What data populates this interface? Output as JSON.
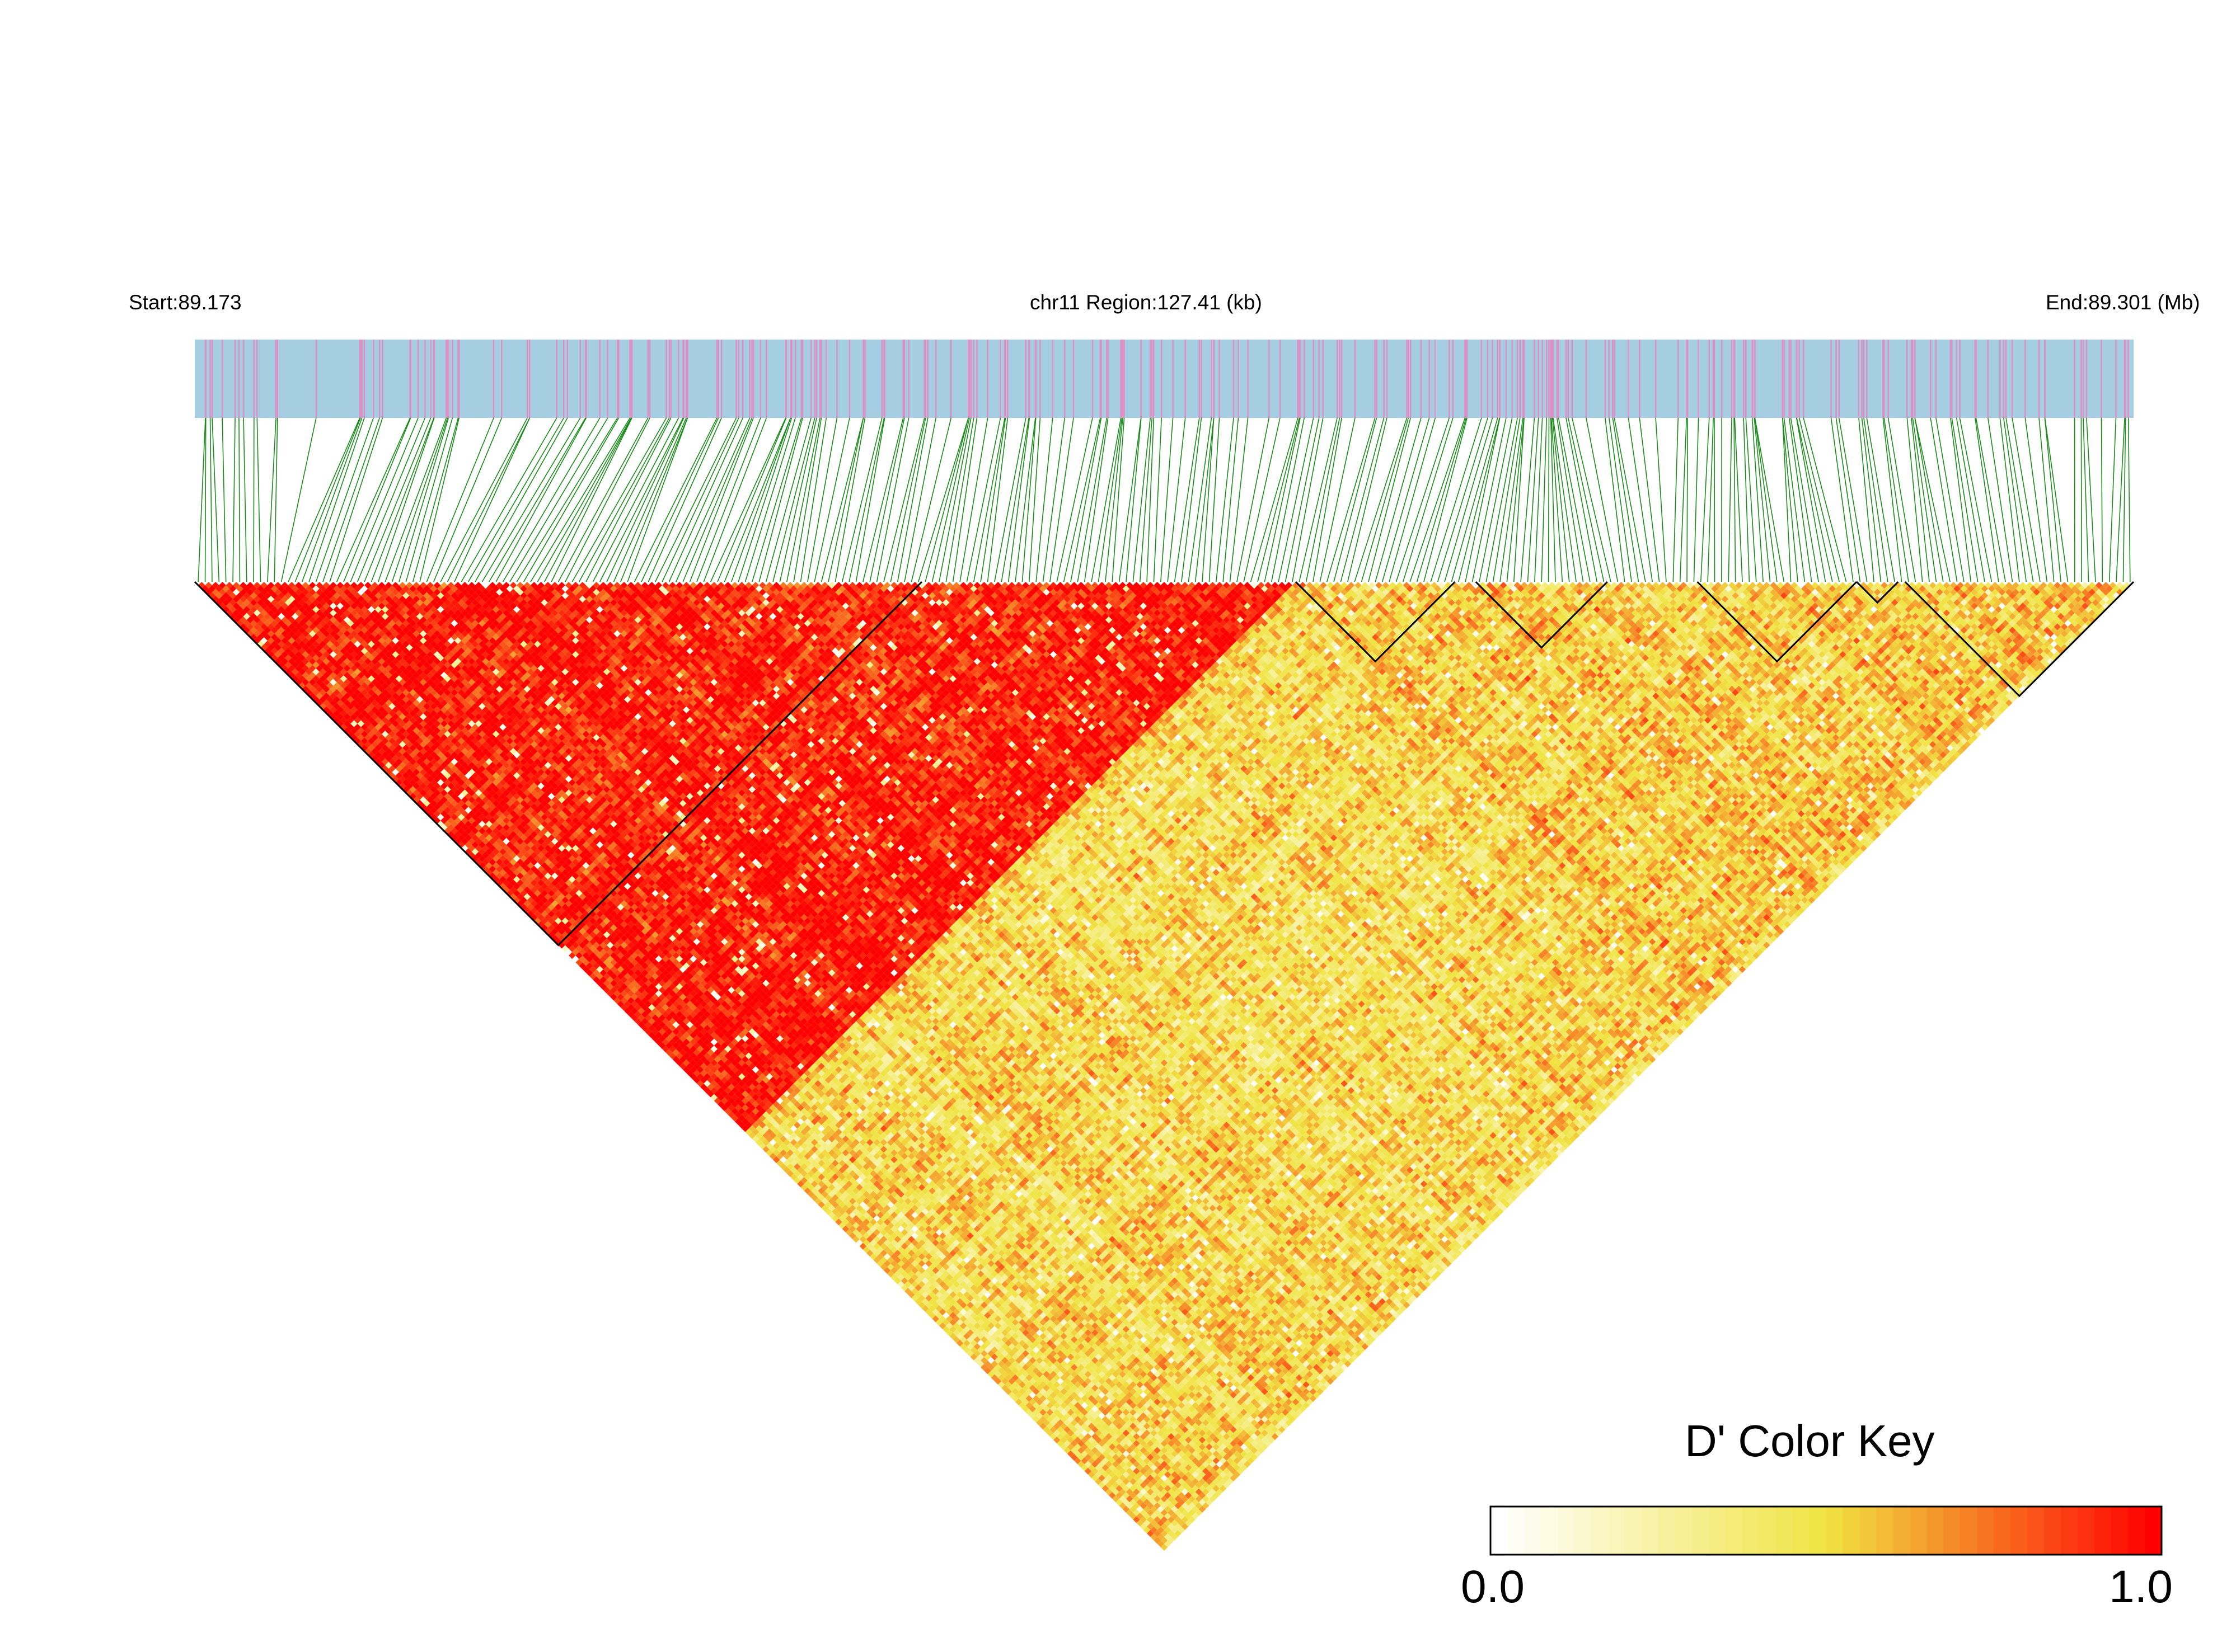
{
  "header": {
    "start_label": "Start:89.173",
    "region_label": "chr11 Region:127.41 (kb)",
    "end_label": "End:89.301 (Mb)"
  },
  "color_key": {
    "title": "D' Color Key",
    "min_label": "0.0",
    "max_label": "1.0",
    "colors": [
      "#ffffff",
      "#f0e442",
      "#ff0000"
    ]
  },
  "chart_data": {
    "type": "heatmap",
    "title": "",
    "chromosome": "chr11",
    "region_start_mb": 89.173,
    "region_end_mb": 89.301,
    "region_length_kb": 127.41,
    "metric": "D'",
    "value_range": [
      0.0,
      1.0
    ],
    "n_snps": 280,
    "snp_track_colors": {
      "background": "#a6cee3",
      "snp_tick": "#de8fc6",
      "connector": "#1a8a1a"
    },
    "haplotype_blocks": [
      {
        "start_index": 0,
        "end_index": 105
      },
      {
        "start_index": 159,
        "end_index": 182
      },
      {
        "start_index": 185,
        "end_index": 204
      },
      {
        "start_index": 217,
        "end_index": 240
      },
      {
        "start_index": 240,
        "end_index": 246
      },
      {
        "start_index": 247,
        "end_index": 280
      }
    ],
    "high_ld_regions": [
      {
        "start_index": 0,
        "end_index": 159,
        "mean_dprime": 0.96
      },
      {
        "start_index": 159,
        "end_index": 280,
        "mean_dprime": 0.55
      }
    ],
    "note_cross_block_mean_dprime": 0.5
  }
}
